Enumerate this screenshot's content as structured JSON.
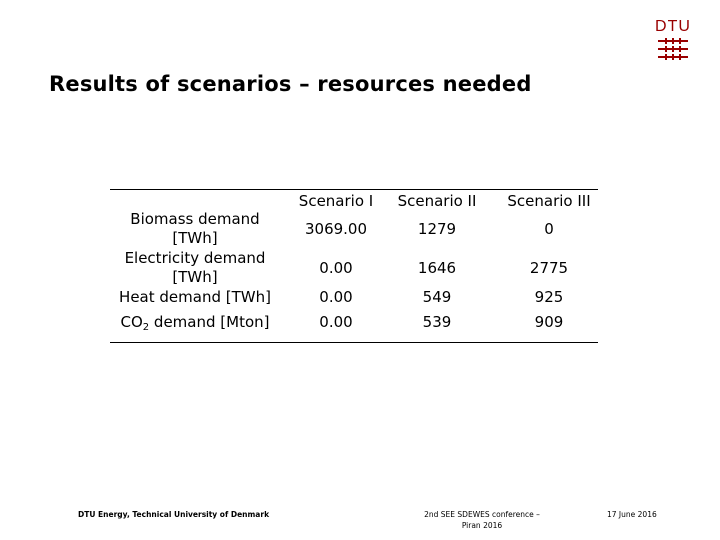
{
  "title": "Results of scenarios – resources needed",
  "logo": {
    "text": "DTU",
    "color": "#990000"
  },
  "table": {
    "headers": [
      "Scenario I",
      "Scenario II",
      "Scenario III"
    ],
    "rows": [
      {
        "label_lines": [
          "Biomass demand",
          "[TWh]"
        ],
        "values": [
          "3069.00",
          "1279",
          "0"
        ]
      },
      {
        "label_lines": [
          "Electricity demand",
          "[TWh]"
        ],
        "values": [
          "0.00",
          "1646",
          "2775"
        ]
      },
      {
        "label_lines": [
          "Heat demand [TWh]"
        ],
        "values": [
          "0.00",
          "549",
          "925"
        ]
      },
      {
        "label_pre": "CO",
        "label_sub": "2",
        "label_post": " demand [Mton]",
        "values": [
          "0.00",
          "539",
          "909"
        ]
      }
    ]
  },
  "footer": {
    "left": "DTU Energy, Technical University of Denmark",
    "middle_lines": [
      "2nd SEE SDEWES conference –",
      "Piran 2016"
    ],
    "right": "17 June 2016"
  }
}
